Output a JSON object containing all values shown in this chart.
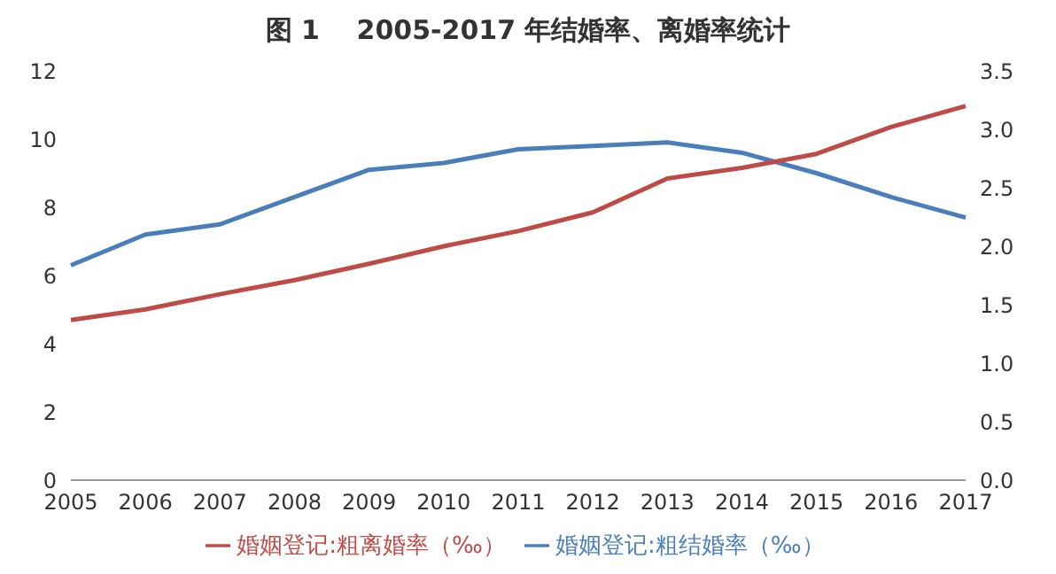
{
  "chart_data": {
    "type": "line",
    "title": "图 1    2005-2017 年结婚率、离婚率统计",
    "categories": [
      "2005",
      "2006",
      "2007",
      "2008",
      "2009",
      "2010",
      "2011",
      "2012",
      "2013",
      "2014",
      "2015",
      "2016",
      "2017"
    ],
    "series": [
      {
        "name": "婚姻登记:粗结婚率（‰）",
        "color": "#4a7ebb",
        "values": [
          6.3,
          7.2,
          7.5,
          8.3,
          9.1,
          9.3,
          9.7,
          9.8,
          9.9,
          9.6,
          9.0,
          8.3,
          7.7
        ]
      },
      {
        "name": "婚姻登记:粗离婚率（‰）",
        "color": "#be4b48",
        "axis": "y2",
        "values": [
          1.37,
          1.46,
          1.59,
          1.71,
          1.85,
          2.0,
          2.13,
          2.29,
          2.58,
          2.67,
          2.79,
          3.02,
          3.2
        ]
      }
    ],
    "ylim": [
      0,
      12
    ],
    "yticks": [
      0,
      2,
      4,
      6,
      8,
      10,
      12
    ],
    "y2lim": [
      0,
      3.5
    ],
    "y2ticks": [
      {
        "value": 0,
        "label": "0.0"
      },
      {
        "value": 0.5,
        "label": "0.5"
      },
      {
        "value": 1,
        "label": "1.0"
      },
      {
        "value": 1.5,
        "label": "1.5"
      },
      {
        "value": 2,
        "label": "2.0"
      },
      {
        "value": 2.5,
        "label": "2.5"
      },
      {
        "value": 3,
        "label": "3.0"
      },
      {
        "value": 3.5,
        "label": "3.5"
      }
    ],
    "grid": false,
    "legend": "bottom",
    "marker": "none",
    "line_style": "solid"
  }
}
